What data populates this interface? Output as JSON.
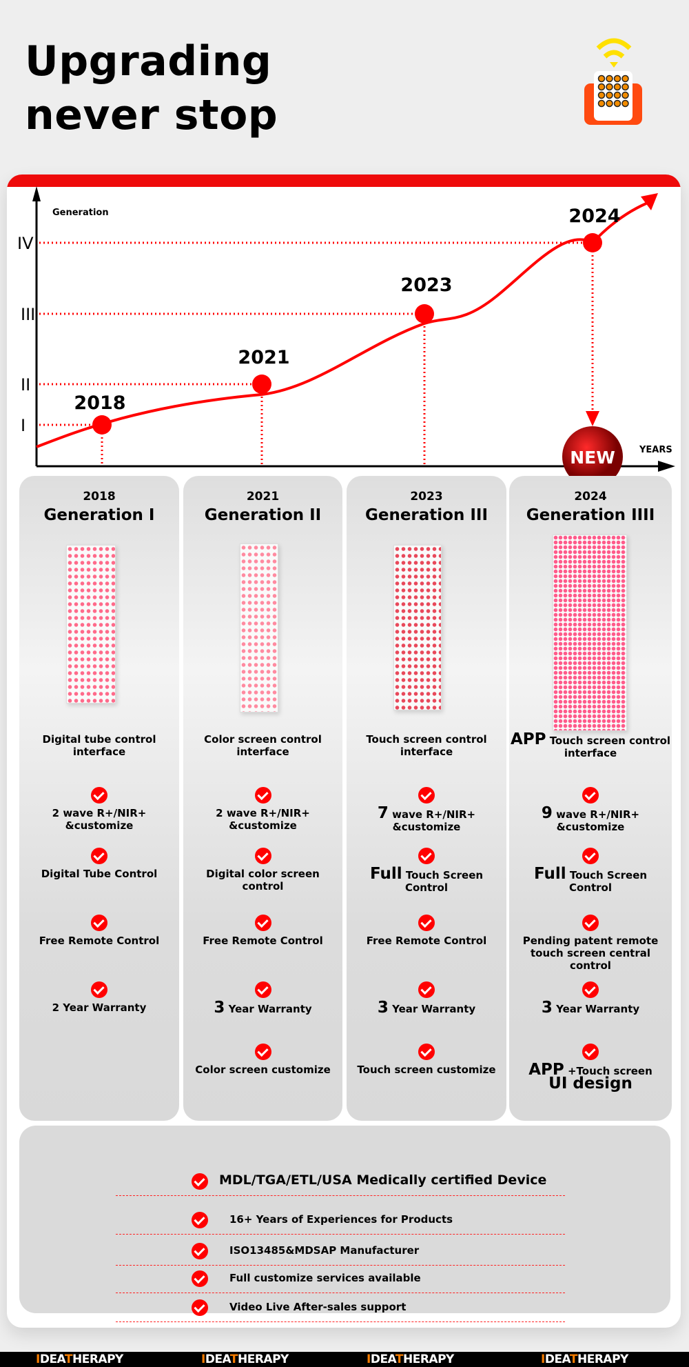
{
  "header": {
    "title_line1": "Upgrading",
    "title_line2": "never stop",
    "icon": "remote-control-wifi-icon"
  },
  "chart": {
    "y_axis_label": "Generation",
    "x_axis_label": "YEARS",
    "y_ticks": [
      "I",
      "II",
      "III",
      "IV"
    ],
    "points": [
      {
        "year": "2018",
        "generation": 1
      },
      {
        "year": "2021",
        "generation": 2
      },
      {
        "year": "2023",
        "generation": 3
      },
      {
        "year": "2024",
        "generation": 4
      }
    ],
    "new_badge": "NEW",
    "accent": "#ee0a0a"
  },
  "columns": [
    {
      "year": "2018",
      "generation": "Generation I",
      "interface_big": "",
      "interface": "Digital tube control interface",
      "features": [
        {
          "big": "",
          "text": "2 wave R+/NIR+ &customize"
        },
        {
          "big": "",
          "text": "Digital Tube Control"
        },
        {
          "big": "",
          "text": "Free Remote Control"
        },
        {
          "big": "",
          "text": "2 Year Warranty"
        }
      ]
    },
    {
      "year": "2021",
      "generation": "Generation II",
      "interface_big": "",
      "interface": "Color screen control interface",
      "features": [
        {
          "big": "",
          "text": "2 wave R+/NIR+ &customize"
        },
        {
          "big": "",
          "text": "Digital color screen control"
        },
        {
          "big": "",
          "text": "Free Remote Control"
        },
        {
          "big": "3",
          "text": "Year Warranty"
        },
        {
          "big": "",
          "text": "Color screen customize"
        }
      ]
    },
    {
      "year": "2023",
      "generation": "Generation III",
      "interface_big": "",
      "interface": "Touch screen control interface",
      "features": [
        {
          "big": "7",
          "text": "wave R+/NIR+ &customize"
        },
        {
          "big": "Full",
          "text": "Touch Screen Control"
        },
        {
          "big": "",
          "text": "Free Remote Control"
        },
        {
          "big": "3",
          "text": "Year Warranty"
        },
        {
          "big": "",
          "text": "Touch screen customize"
        }
      ]
    },
    {
      "year": "2024",
      "generation": "Generation IIII",
      "interface_big": "APP",
      "interface": "Touch screen control interface",
      "features": [
        {
          "big": "9",
          "text": "wave R+/NIR+ &customize"
        },
        {
          "big": "Full",
          "text": "Touch Screen Control"
        },
        {
          "big": "",
          "text": "Pending patent remote touch screen central control"
        },
        {
          "big": "3",
          "text": "Year Warranty"
        },
        {
          "big": "APP",
          "text": "+Touch screen",
          "big2": "UI design"
        }
      ]
    }
  ],
  "benefits": [
    "MDL/TGA/ETL/USA Medically certified Device",
    "16+ Years of Experiences for Products",
    "ISO13485&MDSAP Manufacturer",
    "Full customize services available",
    "Video Live After-sales support"
  ],
  "footer": {
    "logo_a": "IDEA",
    "logo_t": "T",
    "logo_b": "HERAPY"
  }
}
